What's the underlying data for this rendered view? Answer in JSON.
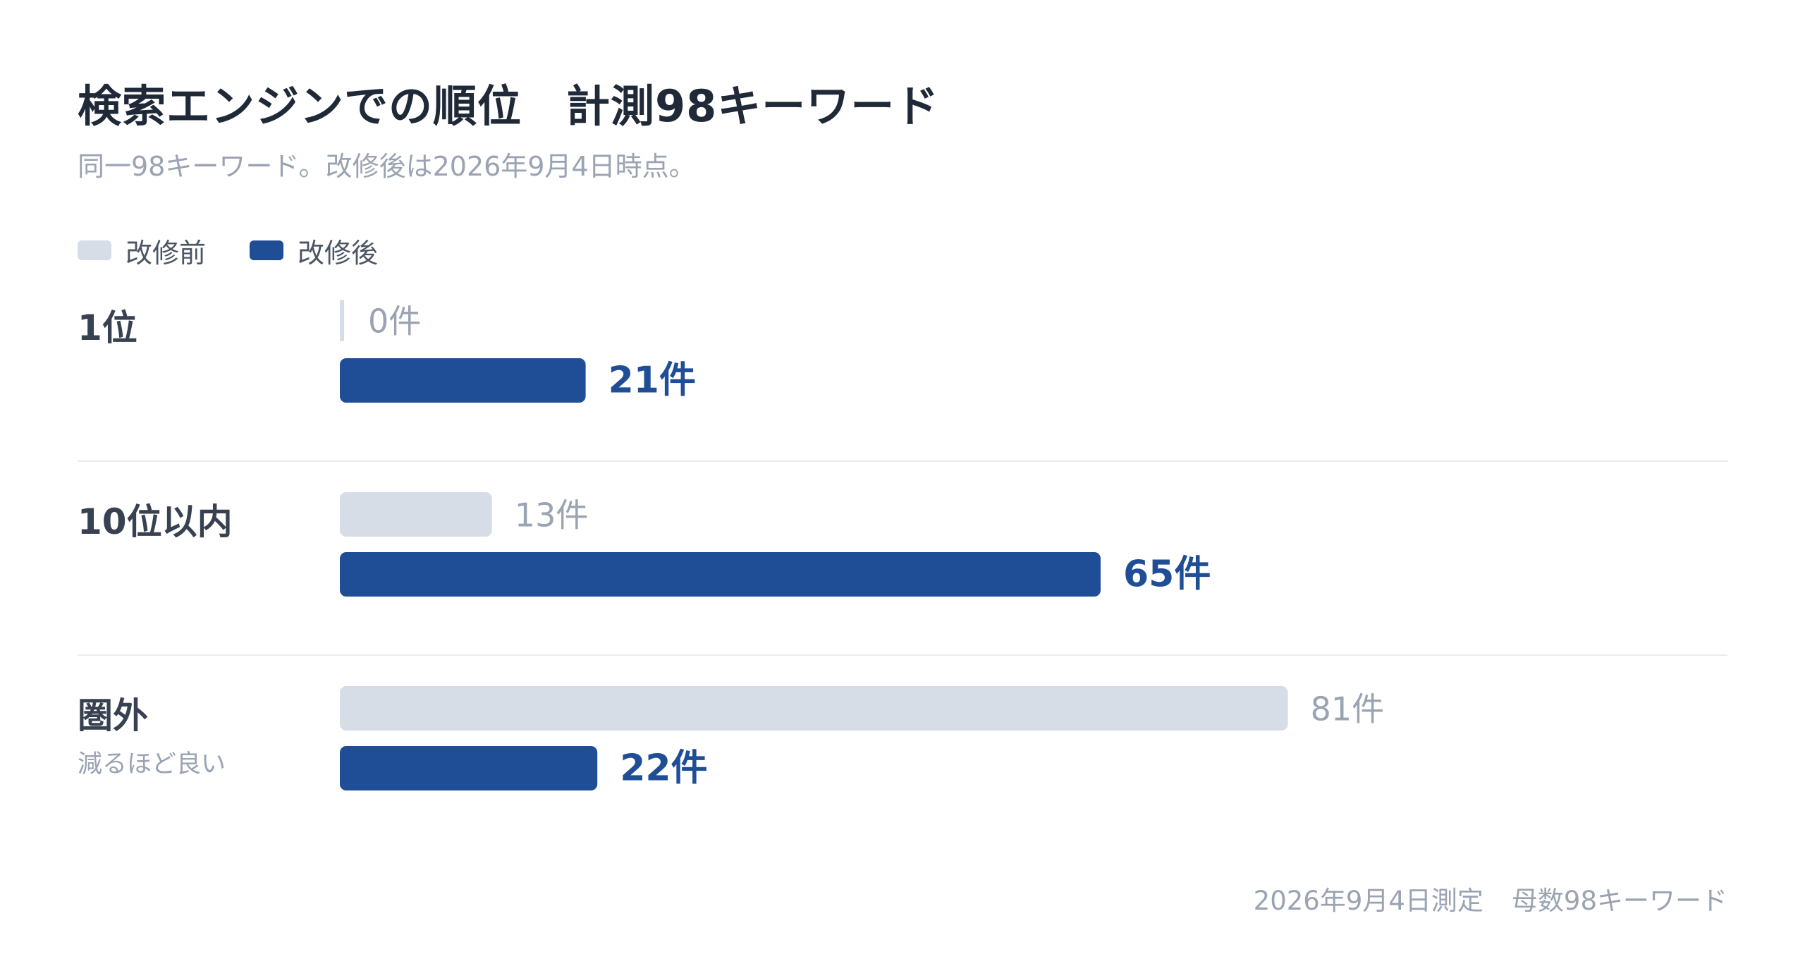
{
  "title": "検索エンジンでの順位　計測98キーワード",
  "subtitle": "同一98キーワード。改修後は2026年9月4日時点。",
  "legend": {
    "before": "改修前",
    "after": "改修後"
  },
  "colors": {
    "before": "#d6dde7",
    "after": "#1f4e96",
    "before_text": "#9aa3b2",
    "after_text": "#1f4e96"
  },
  "footer": {
    "measured": "2026年9月4日測定",
    "base": "母数98キーワード"
  },
  "chart_data": {
    "type": "bar",
    "orientation": "horizontal",
    "categories": [
      "1位",
      "10位以内",
      "圏外"
    ],
    "category_notes": [
      "",
      "",
      "減るほど良い"
    ],
    "series": [
      {
        "name": "改修前",
        "values": [
          0,
          13,
          81
        ]
      },
      {
        "name": "改修後",
        "values": [
          21,
          65,
          22
        ]
      }
    ],
    "value_labels": [
      [
        "0件",
        "13件",
        "81件"
      ],
      [
        "21件",
        "65件",
        "22件"
      ]
    ],
    "xlim": [
      0,
      98
    ],
    "grid": false,
    "legend_position": "top-left"
  }
}
